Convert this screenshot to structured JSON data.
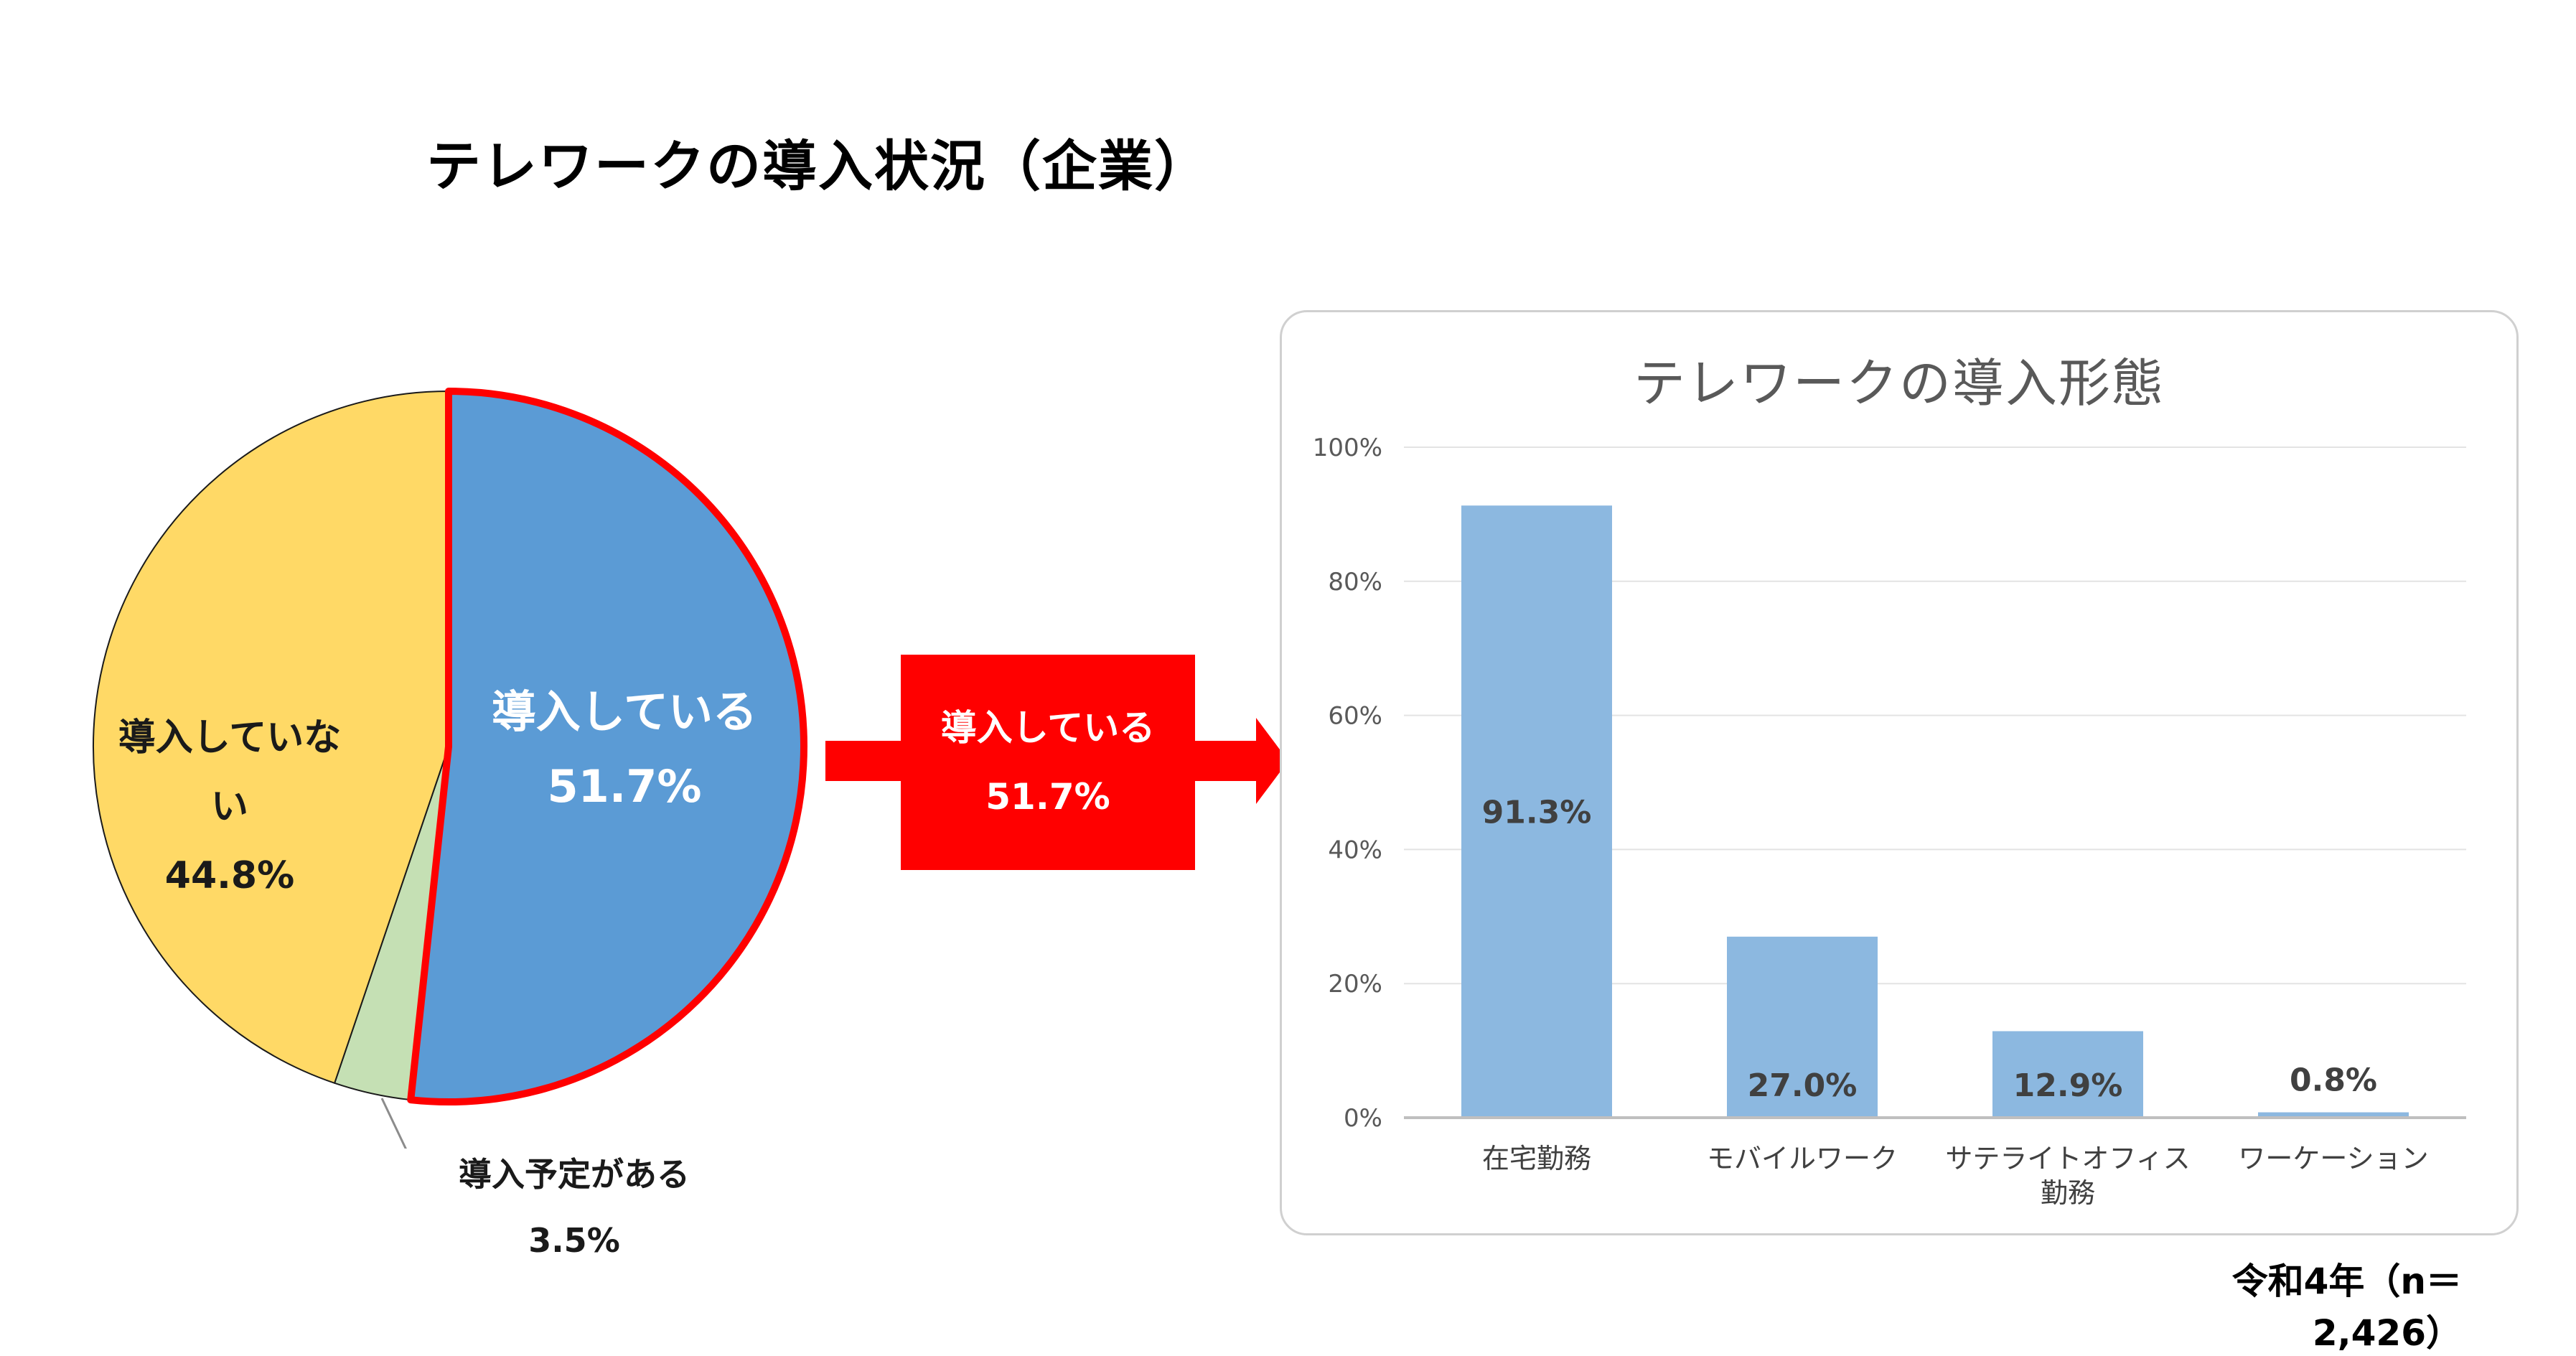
{
  "title": "テレワークの導入状況（企業）",
  "footnote": "令和4年（n＝2,426）",
  "colors": {
    "introduced": "#5b9bd5",
    "not_introduced": "#ffd966",
    "planned": "#c5e0b4",
    "highlight": "#ff0000",
    "bar": "#8cb8e0"
  },
  "arrow": {
    "label": "導入している",
    "value": "51.7%"
  },
  "chart_data": [
    {
      "type": "pie",
      "slices": [
        {
          "label": "導入している",
          "value_label": "51.7%",
          "value": 51.7,
          "color": "#5b9bd5",
          "highlight": true
        },
        {
          "label": "導入予定がある",
          "value_label": "3.5%",
          "value": 3.5,
          "color": "#c5e0b4"
        },
        {
          "label": "導入していない",
          "value_label": "44.8%",
          "value": 44.8,
          "color": "#ffd966"
        }
      ]
    },
    {
      "type": "bar",
      "title": "テレワークの導入形態",
      "categories": [
        "在宅勤務",
        "モバイルワーク",
        "サテライトオフィス勤務",
        "ワーケーション"
      ],
      "category_lines": [
        [
          "在宅勤務"
        ],
        [
          "モバイルワーク"
        ],
        [
          "サテライトオフィス",
          "勤務"
        ],
        [
          "ワーケーション"
        ]
      ],
      "values": [
        91.3,
        27.0,
        12.9,
        0.8
      ],
      "data_labels": [
        "91.3%",
        "27.0%",
        "12.9%",
        "0.8%"
      ],
      "ylim": [
        0,
        100
      ],
      "yticks": [
        0,
        20,
        40,
        60,
        80,
        100
      ],
      "ytick_labels": [
        "0%",
        "20%",
        "40%",
        "60%",
        "80%",
        "100%"
      ],
      "grid": true
    }
  ]
}
